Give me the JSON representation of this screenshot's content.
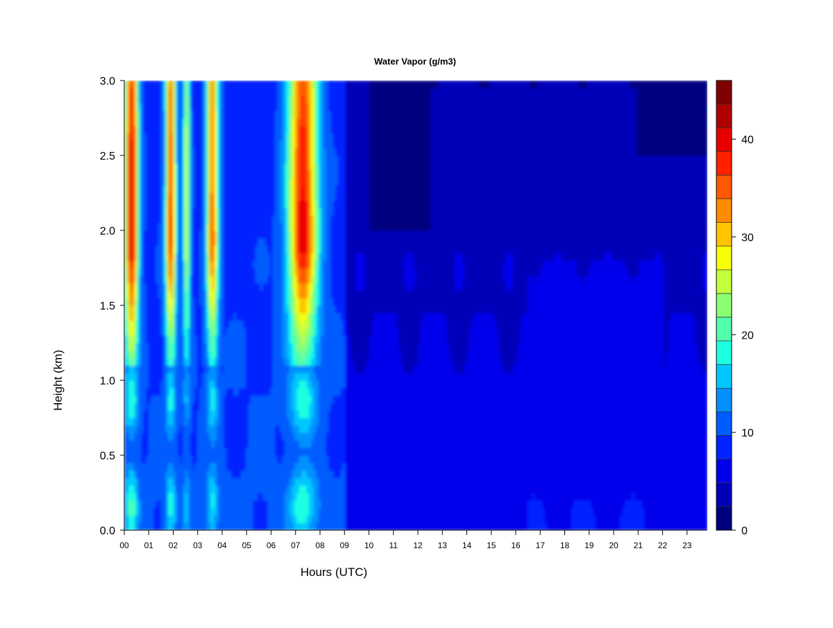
{
  "chart_data": {
    "type": "heatmap",
    "title": "Water Vapor (g/m3)",
    "xlabel": "Hours (UTC)",
    "ylabel": "Height (km)",
    "xlim": [
      0,
      23.83
    ],
    "ylim": [
      0.0,
      3.0
    ],
    "x_ticks": [
      "00",
      "01",
      "02",
      "03",
      "04",
      "05",
      "06",
      "07",
      "08",
      "09",
      "10",
      "11",
      "12",
      "13",
      "14",
      "15",
      "16",
      "17",
      "18",
      "19",
      "20",
      "21",
      "22",
      "23"
    ],
    "y_ticks": [
      "0.0",
      "0.5",
      "1.0",
      "1.5",
      "2.0",
      "2.5",
      "3.0"
    ],
    "colorbar": {
      "min": 0,
      "max": 46,
      "levels": 16,
      "tick_values": [
        0,
        10,
        20,
        30,
        40
      ],
      "tick_labels": [
        "0",
        "10",
        "20",
        "30",
        "40"
      ],
      "colors": [
        "#00007f",
        "#0000b8",
        "#0000ec",
        "#0024ff",
        "#005cff",
        "#0090ff",
        "#00c8ff",
        "#1effe0",
        "#52ffac",
        "#8aff74",
        "#c2ff3c",
        "#f6ff08",
        "#ffc400",
        "#ff8c00",
        "#ff5800",
        "#ff2000",
        "#e80000",
        "#b00000",
        "#7f0000"
      ]
    },
    "series": [
      {
        "x": 0.3,
        "width": 0.65,
        "peak": 43
      },
      {
        "x": 1.9,
        "width": 0.5,
        "peak": 38
      },
      {
        "x": 2.55,
        "width": 0.35,
        "peak": 27
      },
      {
        "x": 3.6,
        "width": 0.55,
        "peak": 36
      },
      {
        "x": 7.3,
        "width": 1.4,
        "peak": 41
      }
    ],
    "grid": false,
    "legend": "right"
  }
}
